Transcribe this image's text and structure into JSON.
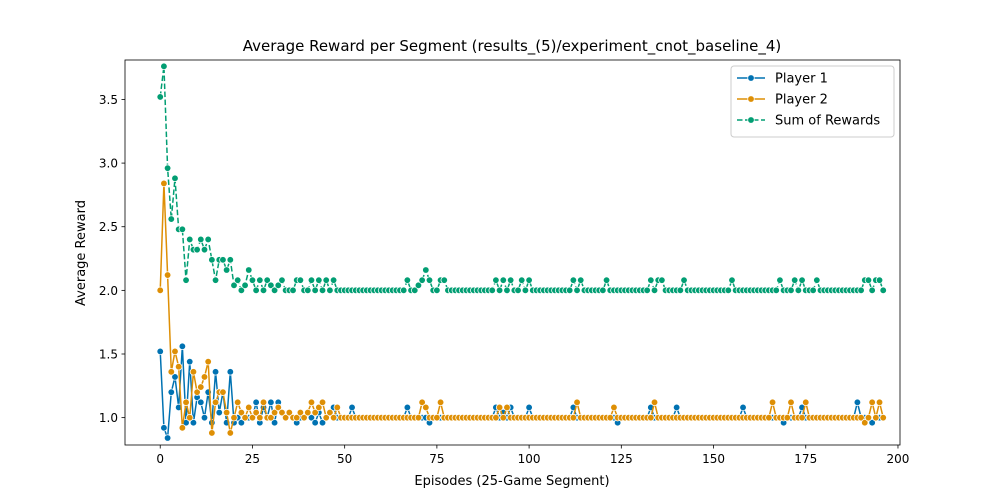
{
  "chart_data": {
    "type": "line",
    "title": "Average Reward per Segment (results_(5)/experiment_cnot_baseline_4)",
    "xlabel": "Episodes (25-Game Segment)",
    "ylabel": "Average Reward",
    "xlim": [
      -9.55,
      200.55
    ],
    "ylim": [
      0.785,
      3.81
    ],
    "xticks": [
      0,
      25,
      50,
      75,
      100,
      125,
      150,
      175,
      200
    ],
    "yticks": [
      1.0,
      1.5,
      2.0,
      2.5,
      3.0,
      3.5
    ],
    "ytick_labels": [
      "1.0",
      "1.5",
      "2.0",
      "2.5",
      "3.0",
      "3.5"
    ],
    "grid": false,
    "legend_position": "top-right",
    "series": [
      {
        "name": "Player 1",
        "color": "#0072b2",
        "linestyle": "solid",
        "marker": "circle",
        "values": [
          1.52,
          0.92,
          0.84,
          1.2,
          1.32,
          1.08,
          1.56,
          0.96,
          1.44,
          0.96,
          1.16,
          1.12,
          1.0,
          1.2,
          0.96,
          1.36,
          1.04,
          1.2,
          0.96,
          1.36,
          0.96,
          1.0,
          0.96,
          1.0,
          1.0,
          1.0,
          1.12,
          0.96,
          1.08,
          1.0,
          1.12,
          0.96,
          1.12,
          1.04,
          1.0,
          1.04,
          1.0,
          0.96,
          1.0,
          1.0,
          1.04,
          1.0,
          0.96,
          1.04,
          0.96,
          1.0,
          1.04,
          1.08,
          1.0,
          1.0,
          1.0,
          1.0,
          1.08,
          1.0,
          1.0,
          1.0,
          1.0,
          1.0,
          1.0,
          1.0,
          1.0,
          1.0,
          1.0,
          1.0,
          1.0,
          1.0,
          1.0,
          1.08,
          1.0,
          1.0,
          1.0,
          1.0,
          1.0,
          0.96,
          1.0,
          1.0,
          1.0,
          1.0,
          1.0,
          1.0,
          1.0,
          1.0,
          1.0,
          1.0,
          1.0,
          1.0,
          1.0,
          1.0,
          1.0,
          1.0,
          1.0,
          1.08,
          1.0,
          1.04,
          1.0,
          1.08,
          1.0,
          1.0,
          1.0,
          1.0,
          1.08,
          1.0,
          1.0,
          1.0,
          1.0,
          1.0,
          1.0,
          1.0,
          1.0,
          1.0,
          1.0,
          1.0,
          1.08,
          1.0,
          1.0,
          1.0,
          1.0,
          1.0,
          1.0,
          1.0,
          1.0,
          1.0,
          1.0,
          1.0,
          0.96,
          1.0,
          1.0,
          1.0,
          1.0,
          1.0,
          1.0,
          1.0,
          1.0,
          1.08,
          1.0,
          1.0,
          1.0,
          1.0,
          1.0,
          1.0,
          1.08,
          1.0,
          1.0,
          1.0,
          1.0,
          1.0,
          1.0,
          1.0,
          1.0,
          1.0,
          1.0,
          1.0,
          1.0,
          1.0,
          1.0,
          1.0,
          1.0,
          1.0,
          1.08,
          1.0,
          1.0,
          1.0,
          1.0,
          1.0,
          1.0,
          1.0,
          1.0,
          1.0,
          1.0,
          0.96,
          1.0,
          1.0,
          1.0,
          1.0,
          1.08,
          1.0,
          1.0,
          1.0,
          1.0,
          1.0,
          1.0,
          1.0,
          1.0,
          1.0,
          1.0,
          1.0,
          1.0,
          1.0,
          1.0,
          1.12,
          1.0,
          1.0,
          1.0,
          0.96,
          1.0,
          1.0
        ]
      },
      {
        "name": "Player 2",
        "color": "#de8f05",
        "linestyle": "solid",
        "marker": "circle",
        "values": [
          2.0,
          2.84,
          2.12,
          1.36,
          1.52,
          1.4,
          0.92,
          1.12,
          1.0,
          1.36,
          1.2,
          1.24,
          1.32,
          1.44,
          0.88,
          1.12,
          1.2,
          1.2,
          1.04,
          0.88,
          1.0,
          1.12,
          1.04,
          1.0,
          1.08,
          1.0,
          1.04,
          1.0,
          1.12,
          1.0,
          1.0,
          1.04,
          1.08,
          1.04,
          1.0,
          1.04,
          1.0,
          1.0,
          1.04,
          1.0,
          1.04,
          1.12,
          1.04,
          1.08,
          1.12,
          1.0,
          1.04,
          1.0,
          1.08,
          1.0,
          1.0,
          1.0,
          1.0,
          1.0,
          1.0,
          1.0,
          1.0,
          1.0,
          1.0,
          1.0,
          1.0,
          1.0,
          1.0,
          1.0,
          1.0,
          1.0,
          1.0,
          1.0,
          1.0,
          1.0,
          1.0,
          1.12,
          1.08,
          1.0,
          1.0,
          1.0,
          1.12,
          1.0,
          1.0,
          1.0,
          1.0,
          1.0,
          1.0,
          1.0,
          1.0,
          1.0,
          1.0,
          1.0,
          1.0,
          1.0,
          1.0,
          1.0,
          1.08,
          1.0,
          1.08,
          1.0,
          1.0,
          1.0,
          1.0,
          1.0,
          1.0,
          1.0,
          1.0,
          1.0,
          1.0,
          1.0,
          1.0,
          1.0,
          1.0,
          1.0,
          1.0,
          1.0,
          1.0,
          1.12,
          1.0,
          1.0,
          1.0,
          1.0,
          1.0,
          1.0,
          1.0,
          1.0,
          1.0,
          1.08,
          1.0,
          1.0,
          1.0,
          1.0,
          1.0,
          1.0,
          1.0,
          1.0,
          1.0,
          1.0,
          1.12,
          1.0,
          1.0,
          1.0,
          1.0,
          1.0,
          1.0,
          1.0,
          1.0,
          1.0,
          1.0,
          1.0,
          1.0,
          1.0,
          1.0,
          1.0,
          1.0,
          1.0,
          1.0,
          1.0,
          1.0,
          1.0,
          1.0,
          1.0,
          1.0,
          1.0,
          1.0,
          1.0,
          1.0,
          1.0,
          1.0,
          1.0,
          1.12,
          1.0,
          1.0,
          1.0,
          1.0,
          1.12,
          1.0,
          1.0,
          1.0,
          1.12,
          1.0,
          1.0,
          1.0,
          1.0,
          1.0,
          1.0,
          1.0,
          1.0,
          1.0,
          1.0,
          1.0,
          1.0,
          1.0,
          1.0,
          1.0,
          0.96,
          1.0,
          1.12,
          1.0,
          1.12,
          1.0
        ]
      },
      {
        "name": "Sum of Rewards",
        "color": "#029e73",
        "linestyle": "dashed",
        "marker": "circle",
        "values": [
          3.52,
          3.76,
          2.96,
          2.56,
          2.88,
          2.48,
          2.48,
          2.08,
          2.4,
          2.32,
          2.32,
          2.4,
          2.32,
          2.4,
          2.24,
          2.08,
          2.24,
          2.24,
          2.16,
          2.24,
          2.04,
          2.08,
          2.0,
          2.04,
          2.16,
          2.08,
          2.0,
          2.08,
          2.0,
          2.08,
          2.04,
          2.0,
          2.04,
          2.08,
          2.0,
          2.0,
          2.0,
          2.08,
          2.08,
          2.0,
          2.0,
          2.08,
          2.0,
          2.08,
          2.0,
          2.08,
          2.0,
          2.08,
          2.0,
          2.0,
          2.0,
          2.0,
          2.0,
          2.0,
          2.0,
          2.0,
          2.0,
          2.0,
          2.0,
          2.0,
          2.0,
          2.0,
          2.0,
          2.0,
          2.0,
          2.0,
          2.0,
          2.08,
          2.0,
          2.0,
          2.04,
          2.08,
          2.16,
          2.08,
          2.0,
          2.0,
          2.08,
          2.08,
          2.0,
          2.0,
          2.0,
          2.0,
          2.0,
          2.0,
          2.0,
          2.0,
          2.0,
          2.0,
          2.0,
          2.0,
          2.0,
          2.08,
          2.0,
          2.08,
          2.0,
          2.08,
          2.0,
          2.0,
          2.08,
          2.0,
          2.08,
          2.0,
          2.0,
          2.0,
          2.0,
          2.0,
          2.0,
          2.0,
          2.0,
          2.0,
          2.0,
          2.0,
          2.08,
          2.0,
          2.08,
          2.0,
          2.0,
          2.0,
          2.0,
          2.0,
          2.0,
          2.08,
          2.0,
          2.0,
          2.0,
          2.0,
          2.0,
          2.0,
          2.0,
          2.0,
          2.0,
          2.0,
          2.0,
          2.08,
          2.0,
          2.08,
          2.08,
          2.0,
          2.0,
          2.0,
          2.0,
          2.0,
          2.08,
          2.0,
          2.0,
          2.0,
          2.0,
          2.0,
          2.0,
          2.0,
          2.0,
          2.0,
          2.0,
          2.0,
          2.0,
          2.08,
          2.0,
          2.0,
          2.0,
          2.0,
          2.0,
          2.0,
          2.0,
          2.0,
          2.0,
          2.0,
          2.0,
          2.0,
          2.08,
          2.0,
          2.0,
          2.0,
          2.08,
          2.0,
          2.08,
          2.0,
          2.0,
          2.0,
          2.08,
          2.0,
          2.0,
          2.0,
          2.0,
          2.0,
          2.0,
          2.0,
          2.0,
          2.0,
          2.0,
          2.0,
          2.0,
          2.08,
          2.08,
          2.0,
          2.08,
          2.08,
          2.0
        ]
      }
    ]
  }
}
